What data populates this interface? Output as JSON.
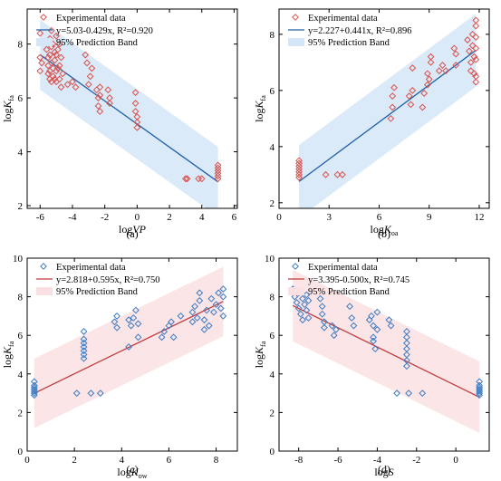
{
  "figure": {
    "panels": [
      "(a)",
      "(b)",
      "(c)",
      "(d)"
    ]
  },
  "chart_data": [
    {
      "id": "a",
      "type": "scatter",
      "panel_label": "(a)",
      "xlabel_main": "log",
      "xlabel_var": "VP",
      "xlabel_sub": "",
      "ylabel_main": "log",
      "ylabel_var": "K",
      "ylabel_sub": "fa",
      "xlim": [
        -6.8,
        6.2
      ],
      "ylim": [
        1.9,
        9.3
      ],
      "xticks": [
        -6,
        -4,
        -2,
        0,
        2,
        4,
        6
      ],
      "yticks": [
        2,
        4,
        6,
        8
      ],
      "marker_color": "#d9534f",
      "line_color": "#1f5fa8",
      "band_color": "#d4e6f7",
      "legend": {
        "scatter_label": "Experimental data",
        "fit_label": "y=5.03-0.429x,  R²=0.920",
        "band_label": "95% Prediction Band"
      },
      "fit": {
        "intercept": 5.03,
        "slope": -0.429,
        "x_range": [
          -6.0,
          5.0
        ],
        "band_half_width": 1.3
      },
      "points": [
        [
          -6.0,
          8.4
        ],
        [
          -6.0,
          7.5
        ],
        [
          -6.0,
          7.0
        ],
        [
          -5.9,
          7.3
        ],
        [
          -5.6,
          7.8
        ],
        [
          -5.5,
          7.5
        ],
        [
          -5.5,
          7.2
        ],
        [
          -5.5,
          6.9
        ],
        [
          -5.4,
          8.2
        ],
        [
          -5.4,
          7.6
        ],
        [
          -5.4,
          7.0
        ],
        [
          -5.4,
          6.7
        ],
        [
          -5.3,
          8.5
        ],
        [
          -5.3,
          7.9
        ],
        [
          -5.3,
          7.3
        ],
        [
          -5.3,
          6.6
        ],
        [
          -5.2,
          8.0
        ],
        [
          -5.2,
          7.1
        ],
        [
          -5.2,
          6.8
        ],
        [
          -5.1,
          7.7
        ],
        [
          -5.1,
          7.4
        ],
        [
          -5.1,
          6.7
        ],
        [
          -5.0,
          8.3
        ],
        [
          -5.0,
          7.6
        ],
        [
          -5.0,
          7.0
        ],
        [
          -5.0,
          6.6
        ],
        [
          -4.9,
          7.8
        ],
        [
          -4.9,
          7.1
        ],
        [
          -4.8,
          8.0
        ],
        [
          -4.8,
          7.2
        ],
        [
          -4.8,
          6.7
        ],
        [
          -4.7,
          7.5
        ],
        [
          -4.7,
          6.4
        ],
        [
          -4.6,
          6.9
        ],
        [
          -4.3,
          6.5
        ],
        [
          -4.0,
          6.6
        ],
        [
          -3.8,
          6.4
        ],
        [
          -3.2,
          7.6
        ],
        [
          -3.1,
          7.3
        ],
        [
          -3.0,
          6.5
        ],
        [
          -2.9,
          6.8
        ],
        [
          -2.8,
          7.1
        ],
        [
          -2.5,
          6.3
        ],
        [
          -2.4,
          6.0
        ],
        [
          -2.4,
          5.7
        ],
        [
          -2.3,
          6.4
        ],
        [
          -2.3,
          6.1
        ],
        [
          -2.3,
          5.5
        ],
        [
          -1.8,
          6.3
        ],
        [
          -1.7,
          6.0
        ],
        [
          -1.7,
          5.8
        ],
        [
          -0.1,
          6.2
        ],
        [
          -0.1,
          5.8
        ],
        [
          -0.1,
          5.5
        ],
        [
          0.0,
          5.3
        ],
        [
          0.0,
          5.1
        ],
        [
          0.0,
          4.9
        ],
        [
          3.0,
          3.0
        ],
        [
          3.1,
          3.0
        ],
        [
          3.8,
          3.0
        ],
        [
          4.0,
          3.0
        ],
        [
          5.0,
          3.5
        ],
        [
          5.0,
          3.4
        ],
        [
          5.0,
          3.3
        ],
        [
          5.0,
          3.2
        ],
        [
          5.0,
          3.1
        ],
        [
          5.0,
          3.0
        ]
      ]
    },
    {
      "id": "b",
      "type": "scatter",
      "panel_label": "(b)",
      "xlabel_main": "log",
      "xlabel_var": "K",
      "xlabel_sub": "oa",
      "ylabel_main": "log",
      "ylabel_var": "K",
      "ylabel_sub": "fa",
      "xlim": [
        0.0,
        12.6
      ],
      "ylim": [
        1.8,
        8.9
      ],
      "xticks": [
        0,
        3,
        6,
        9,
        12
      ],
      "yticks": [
        2,
        4,
        6,
        8
      ],
      "marker_color": "#d9534f",
      "line_color": "#1f5fa8",
      "band_color": "#d4e6f7",
      "legend": {
        "scatter_label": "Experimental data",
        "fit_label": "y=2.227+0.441x,  R²=0.896",
        "band_label": "95% Prediction Band"
      },
      "fit": {
        "intercept": 2.227,
        "slope": 0.441,
        "x_range": [
          1.2,
          11.8
        ],
        "band_half_width": 1.3
      },
      "points": [
        [
          1.2,
          3.5
        ],
        [
          1.2,
          3.4
        ],
        [
          1.2,
          3.3
        ],
        [
          1.2,
          3.2
        ],
        [
          1.2,
          3.1
        ],
        [
          1.2,
          3.0
        ],
        [
          1.2,
          2.9
        ],
        [
          2.8,
          3.0
        ],
        [
          3.5,
          3.0
        ],
        [
          3.8,
          3.0
        ],
        [
          6.7,
          5.0
        ],
        [
          6.8,
          5.4
        ],
        [
          6.8,
          5.8
        ],
        [
          6.9,
          6.1
        ],
        [
          7.8,
          5.8
        ],
        [
          7.9,
          5.5
        ],
        [
          8.0,
          6.0
        ],
        [
          8.0,
          6.8
        ],
        [
          8.6,
          5.4
        ],
        [
          8.7,
          5.9
        ],
        [
          8.9,
          6.2
        ],
        [
          8.9,
          6.6
        ],
        [
          9.0,
          6.4
        ],
        [
          9.1,
          7.0
        ],
        [
          9.1,
          7.2
        ],
        [
          9.6,
          6.7
        ],
        [
          9.8,
          6.9
        ],
        [
          10.0,
          6.7
        ],
        [
          10.5,
          7.5
        ],
        [
          10.6,
          6.9
        ],
        [
          10.6,
          7.3
        ],
        [
          11.3,
          7.8
        ],
        [
          11.4,
          7.4
        ],
        [
          11.5,
          7.0
        ],
        [
          11.5,
          6.7
        ],
        [
          11.6,
          8.0
        ],
        [
          11.6,
          7.6
        ],
        [
          11.7,
          7.2
        ],
        [
          11.7,
          6.6
        ],
        [
          11.8,
          8.3
        ],
        [
          11.8,
          7.9
        ],
        [
          11.8,
          7.5
        ],
        [
          11.8,
          7.1
        ],
        [
          11.8,
          6.5
        ],
        [
          11.8,
          6.3
        ],
        [
          11.8,
          8.5
        ]
      ]
    },
    {
      "id": "c",
      "type": "scatter",
      "panel_label": "(c)",
      "xlabel_main": "log",
      "xlabel_var": "K",
      "xlabel_sub": "ow",
      "ylabel_main": "log",
      "ylabel_var": "K",
      "ylabel_sub": "fa",
      "xlim": [
        0.0,
        8.9
      ],
      "ylim": [
        0.0,
        10.0
      ],
      "xticks": [
        0,
        2,
        4,
        6,
        8
      ],
      "yticks": [
        0,
        2,
        4,
        6,
        8,
        10
      ],
      "marker_color": "#3b7cc4",
      "line_color": "#c0393b",
      "band_color": "#fbe0e3",
      "legend": {
        "scatter_label": "Experimental data",
        "fit_label": "y=2.818+0.595x,  R²=0.750",
        "band_label": "95% Prediction Band"
      },
      "fit": {
        "intercept": 2.818,
        "slope": 0.595,
        "x_range": [
          0.3,
          8.3
        ],
        "band_half_width": 1.8
      },
      "points": [
        [
          0.3,
          3.6
        ],
        [
          0.3,
          3.4
        ],
        [
          0.3,
          3.3
        ],
        [
          0.3,
          3.2
        ],
        [
          0.3,
          3.1
        ],
        [
          0.3,
          3.0
        ],
        [
          0.3,
          2.9
        ],
        [
          2.1,
          3.0
        ],
        [
          2.7,
          3.0
        ],
        [
          3.1,
          3.0
        ],
        [
          2.4,
          4.8
        ],
        [
          2.4,
          5.0
        ],
        [
          2.4,
          5.2
        ],
        [
          2.4,
          5.4
        ],
        [
          2.4,
          5.6
        ],
        [
          2.4,
          5.8
        ],
        [
          2.4,
          6.2
        ],
        [
          3.7,
          6.7
        ],
        [
          3.8,
          6.4
        ],
        [
          3.8,
          7.0
        ],
        [
          4.3,
          6.8
        ],
        [
          4.3,
          5.4
        ],
        [
          4.4,
          6.5
        ],
        [
          4.5,
          6.9
        ],
        [
          4.6,
          7.3
        ],
        [
          4.7,
          6.6
        ],
        [
          4.7,
          5.9
        ],
        [
          5.7,
          5.9
        ],
        [
          5.8,
          6.2
        ],
        [
          6.0,
          6.5
        ],
        [
          6.1,
          6.7
        ],
        [
          6.2,
          5.9
        ],
        [
          6.5,
          7.0
        ],
        [
          7.0,
          7.2
        ],
        [
          7.0,
          6.7
        ],
        [
          7.1,
          7.5
        ],
        [
          7.2,
          6.9
        ],
        [
          7.3,
          7.8
        ],
        [
          7.3,
          8.2
        ],
        [
          7.5,
          6.3
        ],
        [
          7.5,
          6.8
        ],
        [
          7.6,
          7.3
        ],
        [
          7.7,
          6.5
        ],
        [
          7.8,
          7.9
        ],
        [
          7.9,
          7.2
        ],
        [
          8.0,
          7.6
        ],
        [
          8.1,
          8.2
        ],
        [
          8.2,
          7.4
        ],
        [
          8.3,
          7.0
        ],
        [
          8.3,
          8.0
        ],
        [
          8.3,
          8.4
        ]
      ]
    },
    {
      "id": "d",
      "type": "scatter",
      "panel_label": "(d)",
      "xlabel_main": "log",
      "xlabel_var": "S",
      "xlabel_sub": "",
      "ylabel_main": "log",
      "ylabel_var": "K",
      "ylabel_sub": "fa",
      "xlim": [
        -9.0,
        1.7
      ],
      "ylim": [
        0.0,
        10.0
      ],
      "xticks": [
        -8,
        -6,
        -4,
        -2,
        0
      ],
      "yticks": [
        0,
        2,
        4,
        6,
        8,
        10
      ],
      "marker_color": "#3b7cc4",
      "line_color": "#c0393b",
      "band_color": "#fbe0e3",
      "legend": {
        "scatter_label": "Experimental data",
        "fit_label": "y=3.395-0.500x,  R²=0.745",
        "band_label": "95% Prediction Band"
      },
      "fit": {
        "intercept": 3.395,
        "slope": -0.5,
        "x_range": [
          -8.3,
          1.2
        ],
        "band_half_width": 1.85
      },
      "points": [
        [
          -8.3,
          8.4
        ],
        [
          -8.2,
          8.0
        ],
        [
          -8.1,
          7.7
        ],
        [
          -8.0,
          7.4
        ],
        [
          -8.0,
          8.2
        ],
        [
          -7.9,
          7.1
        ],
        [
          -7.8,
          7.9
        ],
        [
          -7.8,
          6.8
        ],
        [
          -7.7,
          7.6
        ],
        [
          -7.6,
          8.1
        ],
        [
          -7.6,
          7.3
        ],
        [
          -7.5,
          6.9
        ],
        [
          -7.5,
          7.8
        ],
        [
          -6.9,
          7.9
        ],
        [
          -6.8,
          7.5
        ],
        [
          -6.8,
          7.1
        ],
        [
          -6.7,
          6.7
        ],
        [
          -6.7,
          6.4
        ],
        [
          -6.3,
          6.5
        ],
        [
          -6.2,
          6.0
        ],
        [
          -6.1,
          6.3
        ],
        [
          -5.4,
          7.5
        ],
        [
          -5.3,
          6.9
        ],
        [
          -5.2,
          6.5
        ],
        [
          -4.4,
          6.8
        ],
        [
          -4.3,
          7.0
        ],
        [
          -4.2,
          6.5
        ],
        [
          -4.2,
          5.9
        ],
        [
          -4.2,
          5.7
        ],
        [
          -4.1,
          5.3
        ],
        [
          -4.0,
          7.2
        ],
        [
          -4.0,
          6.3
        ],
        [
          -3.4,
          6.8
        ],
        [
          -3.3,
          6.5
        ],
        [
          -2.5,
          6.2
        ],
        [
          -2.5,
          5.9
        ],
        [
          -2.5,
          5.6
        ],
        [
          -2.5,
          5.3
        ],
        [
          -2.5,
          5.0
        ],
        [
          -2.5,
          4.7
        ],
        [
          -2.5,
          4.4
        ],
        [
          -3.0,
          3.0
        ],
        [
          -2.4,
          3.0
        ],
        [
          -1.7,
          3.0
        ],
        [
          1.2,
          3.6
        ],
        [
          1.2,
          3.4
        ],
        [
          1.2,
          3.3
        ],
        [
          1.2,
          3.2
        ],
        [
          1.2,
          3.1
        ],
        [
          1.2,
          3.0
        ],
        [
          1.2,
          2.9
        ]
      ]
    }
  ]
}
